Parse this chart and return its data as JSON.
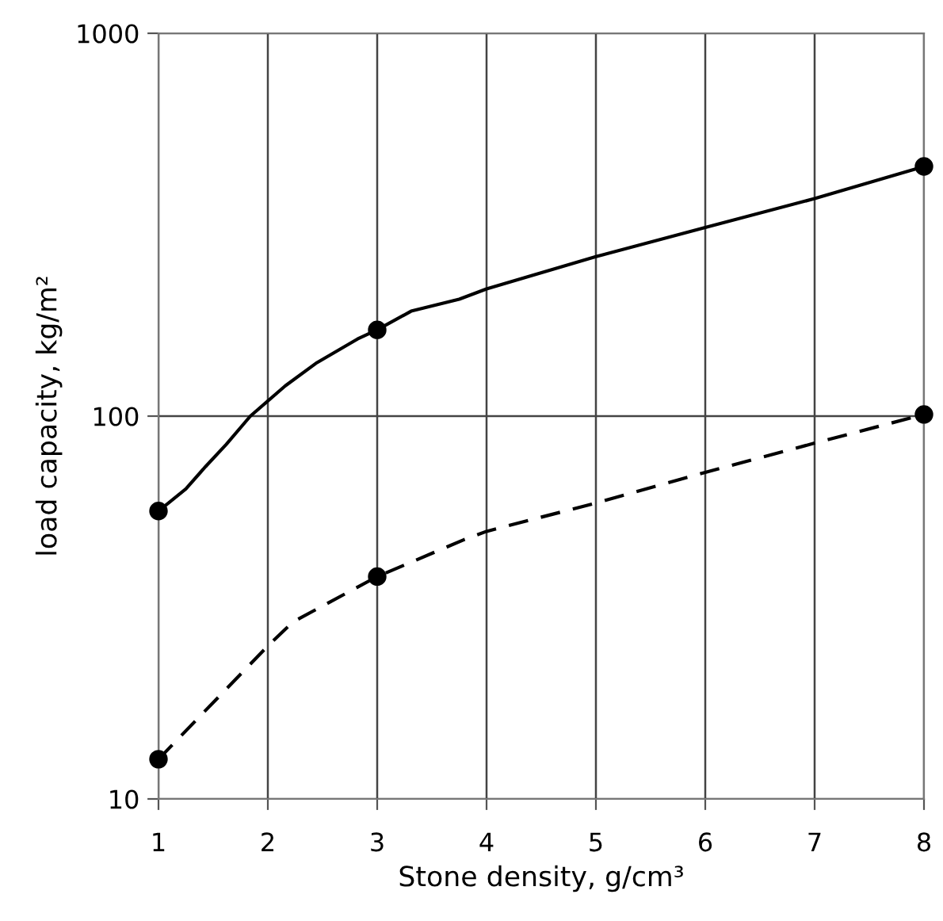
{
  "chart_data": {
    "type": "line",
    "xlabel": "Stone density, g/cm³",
    "ylabel": "load capacity, kg/m²",
    "log": "y",
    "xlim": [
      1,
      8
    ],
    "xticks": [
      1,
      2,
      3,
      4,
      5,
      6,
      7,
      8
    ],
    "ylim": [
      10,
      1000
    ],
    "yticks": [
      10,
      100,
      1000
    ],
    "grid": true,
    "legend": false,
    "series": [
      {
        "color": "#000000",
        "line_style": "solid",
        "marker": "none",
        "x": [
          1,
          1.25,
          1.43,
          1.62,
          1.84,
          2.16,
          2.45,
          2.82,
          3,
          3.31,
          3.75,
          4,
          5,
          6,
          7,
          8
        ],
        "values": [
          56.5,
          64.5,
          73.8,
          84.4,
          100,
          120,
          138,
          159,
          168,
          188,
          202,
          215,
          261,
          311,
          370,
          449
        ]
      },
      {
        "color": "#000000",
        "line_style": "dashed",
        "marker": "none",
        "x": [
          1,
          2,
          2.23,
          3,
          3.79,
          4,
          5,
          6,
          7,
          8
        ],
        "values": [
          12.7,
          25.1,
          29,
          38.1,
          47.5,
          50,
          59.3,
          71.3,
          85,
          101
        ]
      },
      {
        "type": "scatter",
        "color": "#000000",
        "marker": "circle",
        "x": [
          1,
          3,
          8,
          1,
          3,
          8
        ],
        "values": [
          56.5,
          168,
          449,
          12.7,
          38.1,
          101
        ]
      }
    ]
  }
}
